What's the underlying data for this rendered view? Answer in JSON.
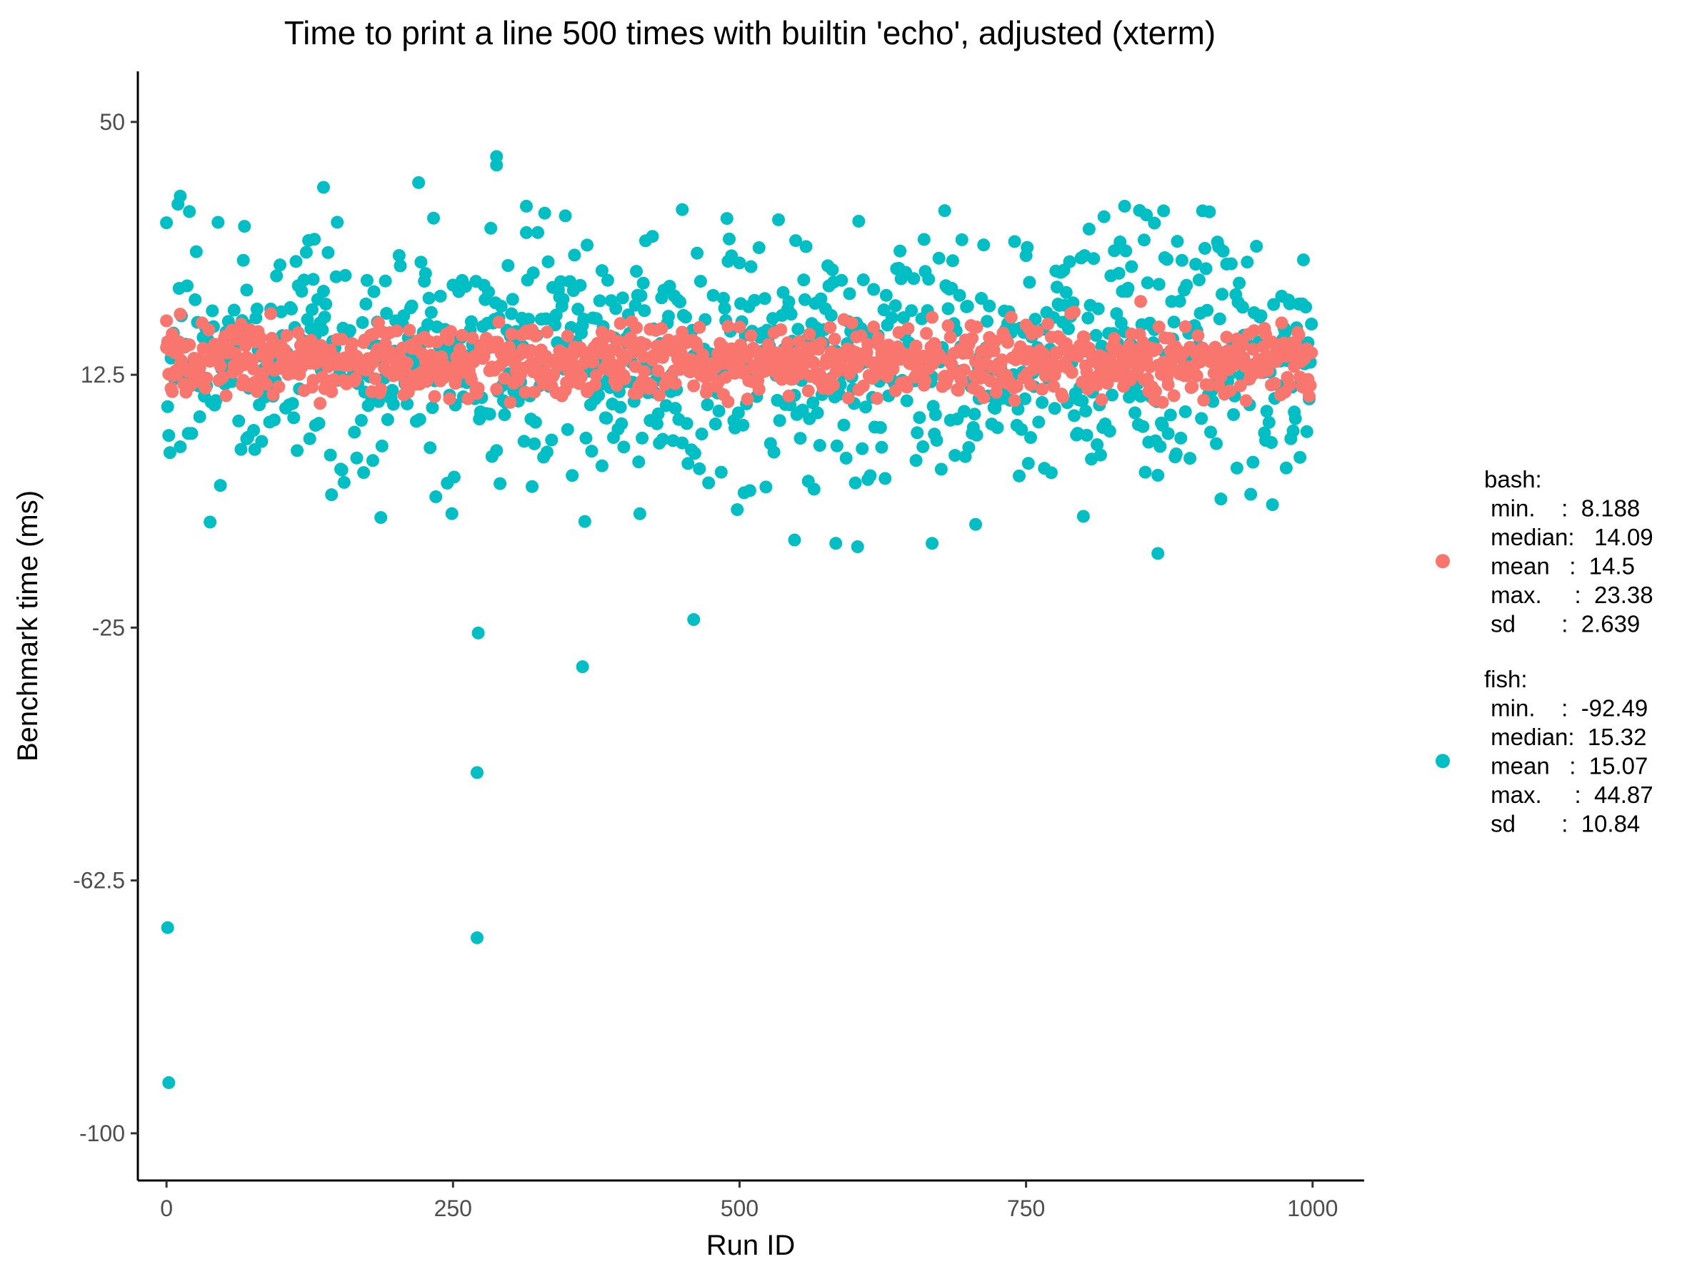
{
  "chart_data": {
    "type": "scatter",
    "title": "Time to print a line 500 times with builtin 'echo', adjusted (xterm)",
    "xlabel": "Run ID",
    "ylabel": "Benchmark time (ms)",
    "xlim": [
      -25,
      1045
    ],
    "ylim": [
      -107,
      57.5
    ],
    "x_ticks": [
      0,
      250,
      500,
      750,
      1000
    ],
    "x_tick_labels": [
      "0",
      "250",
      "500",
      "750",
      "1000"
    ],
    "y_ticks": [
      50,
      12.5,
      -25,
      -62.5,
      -100
    ],
    "y_tick_labels": [
      "50",
      "12.5",
      "-25",
      "-62.5",
      "-100"
    ],
    "grid": false,
    "legend_position": "right",
    "series": [
      {
        "name": "bash",
        "color": "#F8766D",
        "stats": [
          "bash:",
          " min.    :  8.188",
          " median:   14.09",
          " mean   :  14.5",
          " max.     :  23.38",
          " sd       :  2.639"
        ],
        "generate": {
          "n": 1000,
          "center": 14.5,
          "sd": 2.6,
          "min": 8.188,
          "max": 23.38
        },
        "points": [
          [
            0,
            20.5
          ],
          [
            12,
            21.5
          ],
          [
            850,
            23.38
          ],
          [
            490,
            8.5
          ],
          [
            620,
            9.0
          ],
          [
            300,
            8.4
          ],
          [
            5,
            10.0
          ]
        ]
      },
      {
        "name": "fish",
        "color": "#00BFC4",
        "stats": [
          "fish:",
          " min.    :  -92.49",
          " median:  15.32",
          " mean   :  15.07",
          " max.     :  44.87",
          " sd       :  10.84"
        ],
        "generate": {
          "n": 1000,
          "center": 15.32,
          "sd": 9.0,
          "min": -10.0,
          "max": 37.0
        },
        "points": [
          [
            1,
            -69.5
          ],
          [
            2,
            -92.49
          ],
          [
            271,
            -46.5
          ],
          [
            271,
            -71.0
          ],
          [
            272,
            -25.8
          ],
          [
            363,
            -30.8
          ],
          [
            460,
            -23.8
          ],
          [
            288,
            44.87
          ],
          [
            288,
            43.6
          ],
          [
            220,
            41.0
          ],
          [
            137,
            40.3
          ],
          [
            12,
            39.0
          ],
          [
            10,
            37.8
          ],
          [
            314,
            37.5
          ],
          [
            836,
            37.5
          ],
          [
            855,
            36.2
          ],
          [
            862,
            35.0
          ],
          [
            450,
            37.0
          ],
          [
            498,
            -7.5
          ],
          [
            548,
            -12.0
          ],
          [
            584,
            -12.5
          ],
          [
            668,
            -12.5
          ],
          [
            800,
            -8.5
          ],
          [
            865,
            -14.0
          ],
          [
            603,
            -13.0
          ],
          [
            70,
            3.0
          ],
          [
            130,
            5.0
          ],
          [
            380,
            -1.0
          ],
          [
            440,
            10.0
          ]
        ]
      }
    ]
  }
}
